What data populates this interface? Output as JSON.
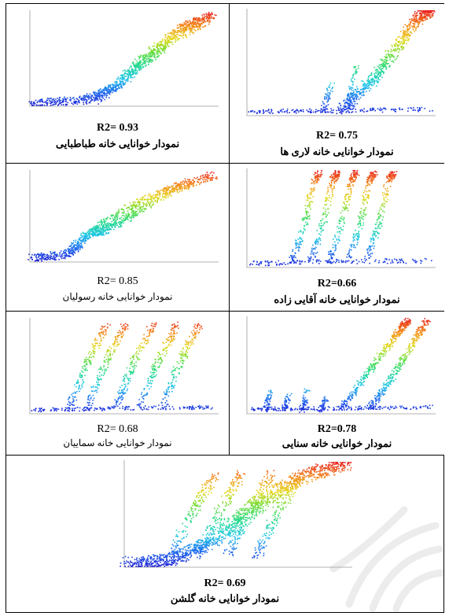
{
  "colors": {
    "gradient": [
      "#1a1fd6",
      "#1e6cf0",
      "#1fc6e8",
      "#21d98f",
      "#66dd3a",
      "#e4d818",
      "#f58a18",
      "#e8221f"
    ],
    "axis": "#9a9a9a",
    "border": "#000000"
  },
  "chart_data": [
    {
      "type": "scatter",
      "position": "top-right",
      "r2_label": "R2= 0.75",
      "title": "نمودار خوانایی خانه لاری ها"
    },
    {
      "type": "scatter",
      "position": "top-left",
      "r2_label": "R2= 0.93",
      "title": "نمودار خوانایی خانه طباطبایی"
    },
    {
      "type": "scatter",
      "position": "middle-right",
      "r2_label": "R2=0.66",
      "title": "نمودار خوانایی خانه آقایی زاده"
    },
    {
      "type": "scatter",
      "position": "middle-left",
      "r2_label": "R2= 0.85",
      "title": "نمودار خوانایی خانه رسولیان"
    },
    {
      "type": "scatter",
      "position": "lower-right",
      "r2_label": "R2=0.78",
      "title": "نمودار خوانایی خانه سنایی"
    },
    {
      "type": "scatter",
      "position": "lower-left",
      "r2_label": "R2= 0.68",
      "title": "نمودار خوانایی خانه سماییان"
    },
    {
      "type": "scatter",
      "position": "bottom",
      "r2_label": "R2= 0.69",
      "title": "نمودار خوانایی خانه گلشن"
    }
  ]
}
